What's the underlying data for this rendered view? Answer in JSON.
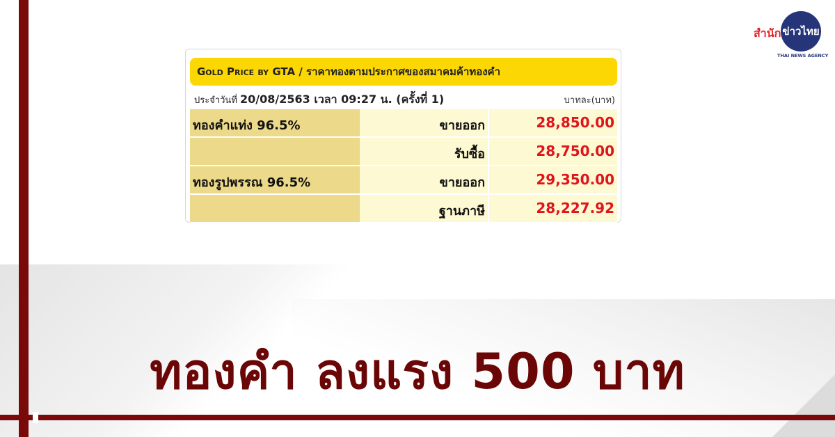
{
  "logo": {
    "red_text": "สำนัก",
    "circle_text": "ข่าวไทย",
    "subtitle": "THAI NEWS AGENCY"
  },
  "card": {
    "header_title": "Gold Price by GTA",
    "header_thai": " / ราคาทองตามประกาศของสมาคมค้าทองคำ",
    "date_prefix": "ประจำวันที่ ",
    "date_value": "20/08/2563 เวลา 09:27 น. (ครั้งที่ 1)",
    "unit": "บาทละ(บาท)",
    "rows": [
      {
        "item": "ทองคำแท่ง 96.5%",
        "type": "ขายออก",
        "price": "28,850.00"
      },
      {
        "item": "",
        "type": "รับซื้อ",
        "price": "28,750.00"
      },
      {
        "item": "ทองรูปพรรณ 96.5%",
        "type": "ขายออก",
        "price": "29,350.00"
      },
      {
        "item": "",
        "type": "ฐานภาษี",
        "price": "28,227.92"
      }
    ]
  },
  "headline": "ทองคำ ลงแรง 500 บาท",
  "colors": {
    "accent": "#7a0a0a",
    "header": "#fcd703",
    "price": "#e0141c",
    "headline": "#6b0606"
  }
}
